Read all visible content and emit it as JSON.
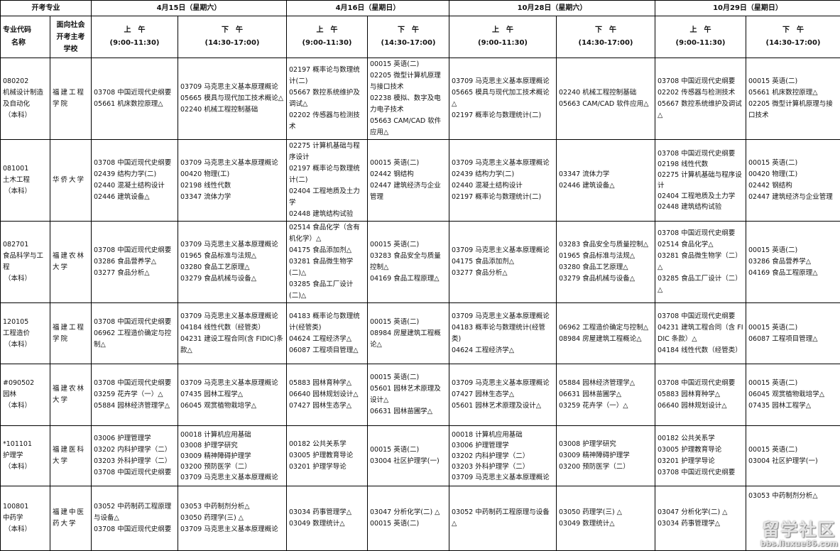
{
  "header": {
    "major_label": "开考专业",
    "dates": [
      "4月15日（星期六）",
      "4月16日（星期日）",
      "10月28日（星期六）",
      "10月29日（星期日）"
    ],
    "code_name_label": [
      "专业代码",
      "名称"
    ],
    "school_label": [
      "面向社会",
      "开考主考",
      "学校"
    ],
    "am_label": "上　午",
    "am_time": "(9:00-11:30)",
    "pm_label": "下　午",
    "pm_time": "(14:30-17:00)"
  },
  "rows": [
    {
      "code": "080202",
      "name": "机械设计制造及自动化",
      "level": "（本科）",
      "school": "福建工程学院",
      "cells": [
        [
          "03708 中国近现代史纲要",
          "05661 机床数控原理△"
        ],
        [
          "03709 马克思主义基本原理概论",
          "05665 模具与现代加工技术概论△",
          "02240 机械工程控制基础"
        ],
        [
          "02197 概率论与数理统计(二)",
          "05667 数控系统维护及调试△",
          "02202 传感器与检测技术"
        ],
        [
          "00015 英语(二)",
          "02205 微型计算机原理与接口技术",
          "02238 模拟、数字及电力电子技术",
          "05663 CAM/CAD 软件应用△"
        ],
        [
          "03709 马克思主义基本原理概论",
          "05665 模具与现代加工技术概论△",
          "02197 概率论与数理统计(二)"
        ],
        [
          "02240 机械工程控制基础",
          "05663 CAM/CAD 软件应用△"
        ],
        [
          "03708 中国近现代史纲要",
          "02202 传感器与检测技术",
          "05667 数控系统维护及调试△"
        ],
        [
          "00015 英语(二)",
          "05661 机床数控原理△",
          "02205 微型计算机原理与接口技术"
        ]
      ]
    },
    {
      "code": "081001",
      "name": "土木工程",
      "level": "（本科）",
      "school": "华侨大学",
      "cells": [
        [
          "03708 中国近现代史纲要",
          "02439 结构力学(二)",
          "02440 混凝土结构设计",
          "02446 建筑设备△"
        ],
        [
          "03709 马克思主义基本原理概论",
          "00420 物理(工)",
          "02198 线性代数",
          "03347 流体力学"
        ],
        [
          "02275 计算机基础与程序设计",
          "02197 概率论与数理统计(二)",
          "02404 工程地质及土力学",
          "02448 建筑结构试验"
        ],
        [
          "00015 英语(二)",
          "02442 钢结构",
          "02447 建筑经济与企业管理"
        ],
        [
          "03709 马克思主义基本原理概论",
          "02439 结构力学(二)",
          "02440 混凝土结构设计",
          "02197 概率论与数理统计(二)"
        ],
        [
          "03347 流体力学",
          "02446 建筑设备△"
        ],
        [
          "03708 中国近现代史纲要",
          "02198 线性代数",
          "02275 计算机基础与程序设计",
          "02404 工程地质及土力学",
          "02448 建筑结构试验"
        ],
        [
          "00015 英语(二)",
          "00420 物理(工)",
          "02442 钢结构",
          "02447 建筑经济与企业管理"
        ]
      ]
    },
    {
      "code": "082701",
      "name": "食品科学与工程",
      "level": "（本科）",
      "school": "福建农林大学",
      "cells": [
        [
          "03708 中国近现代史纲要",
          "03286 食品营养学△",
          "03277 食品分析△"
        ],
        [
          "03709 马克思主义基本原理概论",
          "01965 食品标准与法规△",
          "03280 食品工艺原理△",
          "03279 食品机械与设备△"
        ],
        [
          "02514 食品化学（含有机化学）△",
          "04175 食品添加剂△",
          "03281 食品微生物学(二)△",
          "03285 食品工厂设计(二)△"
        ],
        [
          "00015 英语(二)",
          "03283 食品安全与质量控制△",
          "04169 食品工程原理△"
        ],
        [
          "03709 马克思主义基本原理概论",
          "04175 食品添加剂△",
          "03277 食品分析△"
        ],
        [
          "03283 食品安全与质量控制△",
          "01965 食品标准与法规△",
          "03280 食品工艺原理△",
          "03279 食品机械与设备△"
        ],
        [
          "03708 中国近现代史纲要",
          "02514 食品化学△",
          "03281 食品微生物学（二）△",
          "03285 食品工厂设计（二）△"
        ],
        [
          "00015 英语(二)",
          "03286 食品营养学△",
          "04169 食品工程原理△"
        ]
      ]
    },
    {
      "code": "120105",
      "name": "工程造价",
      "level": "（本科）",
      "school": "福建工程学院",
      "cells": [
        [
          "03708 中国近现代史纲要",
          "06962 工程造价确定与控制△"
        ],
        [
          "03709 马克思主义基本原理概论",
          "04184 线性代数（经管类）",
          "04231 建设工程合同(含 FIDIC)条款△"
        ],
        [
          "04183 概率论与数理统计(经管类)",
          "04624 工程经济学△",
          "06087 工程项目管理△"
        ],
        [
          "00015 英语(二)",
          "08984 房屋建筑工程概论△"
        ],
        [
          "03709 马克思主义基本原理概论",
          "04183 概率论与数理统计(经管类)",
          "04624 工程经济学△"
        ],
        [
          "06962 工程造价确定与控制△",
          "08984 房屋建筑工程概论△"
        ],
        [
          "03708 中国近现代史纲要",
          "04231 建筑工程合同（含 FIDIC 条款）△",
          "04184 线性代数（经管类）"
        ],
        [
          "00015 英语(二)",
          "06087 工程项目管理△"
        ]
      ]
    },
    {
      "code": "#090502",
      "name": "园林",
      "level": "（本科）",
      "school": "福建农林大学",
      "cells": [
        [
          "03708 中国近现代史纲要",
          "03259 花卉学（一）△",
          "05884 园林经济管理学△"
        ],
        [
          "03709 马克思主义基本原理概论",
          "07435 园林工程学△",
          "06045 观赏植物栽培学△"
        ],
        [
          "05883 园林育种学△",
          "06640 园林规划设计△",
          "07427 园林生态学△"
        ],
        [
          "00015 英语(二)",
          "05601 园林艺术原理及设计△",
          "06631 园林苗圃学△"
        ],
        [
          "03709 马克思主义基本原理概论",
          "07427 园林生态学△",
          "05601 园林艺术原理及设计△"
        ],
        [
          "05884 园林经济管理学△",
          "06631 园林苗圃学△",
          "03259 花卉学（一）△"
        ],
        [
          "03708 中国近现代史纲要",
          "05883 园林育种学△",
          "06640 园林规划设计△"
        ],
        [
          "00015 英语(二)",
          "06045 观赏植物栽培学△",
          "07435 园林工程学△"
        ]
      ]
    },
    {
      "code": "*101101",
      "name": "护理学",
      "level": "（本科）",
      "school": "福建医科大学",
      "cells": [
        [
          "03006 护理管理学",
          "03202 内科护理学（二）",
          "03203 外科护理学（二）",
          "03708 中国近现代史纲要"
        ],
        [
          "00018 计算机应用基础",
          "03008 护理学研究",
          "03009 精神障碍护理学",
          "03200 预防医学（二）",
          "03709 马克思主义基本原理概论"
        ],
        [
          "00182 公共关系学",
          "03005 护理教育导论",
          "03201 护理学导论"
        ],
        [
          "00015 英语(二)",
          "03004 社区护理学(一)"
        ],
        [
          "00018 计算机应用基础",
          "03006 护理管理学",
          "03202 内科护理学（二）",
          "03203 外科护理学（二）",
          "03709 马克思主义基本原理概论"
        ],
        [
          "03008 护理学研究",
          "03009 精神障碍护理学",
          "03200 预防医学（二）"
        ],
        [
          "00182 公共关系学",
          "03005 护理教育导论",
          "03201 护理学导论",
          "03708 中国近现代史纲要"
        ],
        [
          "00015 英语(二)",
          "03004 社区护理学(一)"
        ]
      ]
    },
    {
      "code": "100801",
      "name": "中药学",
      "level": "（本科）",
      "school": "福建中医药大学",
      "cells": [
        [
          "03052 中药制药工程原理与设备△",
          "03708 中国近现代史纲要"
        ],
        [
          "03053 中药制剂分析△",
          "03050 药理学(三) △",
          "03709 马克思主义基本原理概论"
        ],
        [
          "03034 药事管理学△",
          "03049 数理统计△"
        ],
        [
          "03047 分析化学(二) △",
          "00015 英语(二)"
        ],
        [
          "03052 中药制药工程原理与设备△"
        ],
        [
          "03050 药理学(三) △",
          "03049 数理统计△"
        ],
        [
          "03047 分析化学(二) △",
          "03034 药事管理学△"
        ],
        [
          "03053 中药制剂分析△"
        ]
      ]
    }
  ],
  "watermark": {
    "title": "留学社区",
    "url": "bbs.liuxue86.com"
  }
}
